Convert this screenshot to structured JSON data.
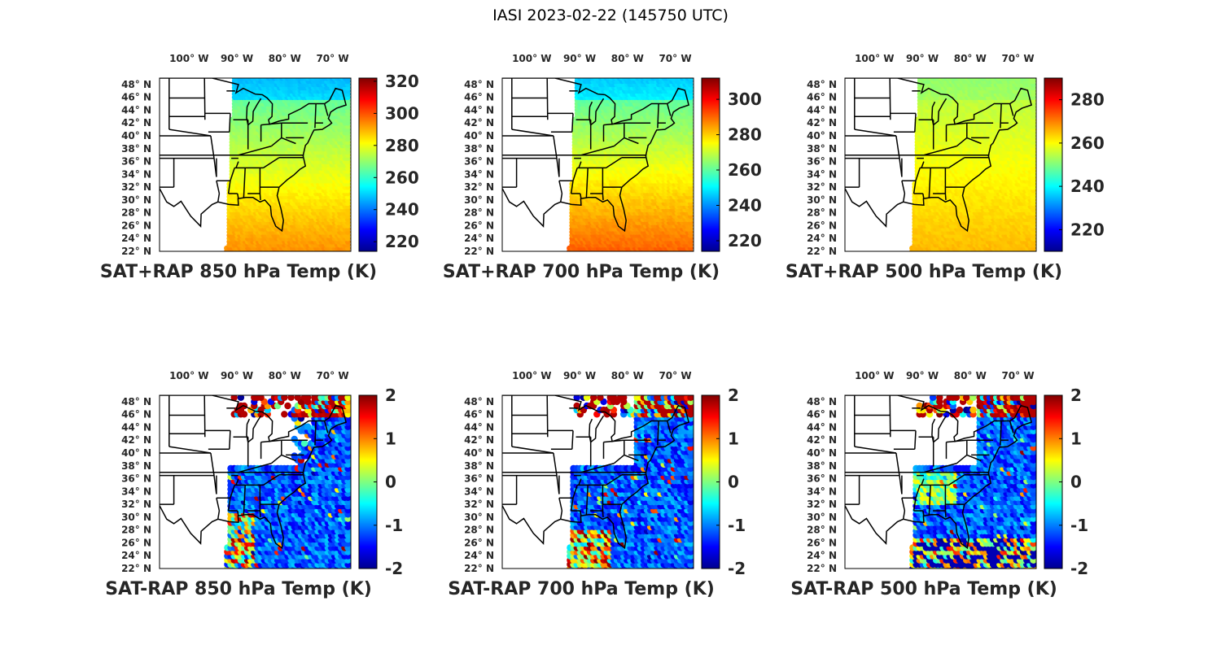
{
  "title": "IASI 2023-02-22 (145750 UTC)",
  "lon_ticks": [
    {
      "lon": 100,
      "label": "100° W"
    },
    {
      "lon": 90,
      "label": "90° W"
    },
    {
      "lon": 80,
      "label": "80° W"
    },
    {
      "lon": 70,
      "label": "70° W"
    }
  ],
  "lat_ticks": [
    {
      "lat": 48,
      "label": "48° N"
    },
    {
      "lat": 46,
      "label": "46° N"
    },
    {
      "lat": 44,
      "label": "44° N"
    },
    {
      "lat": 42,
      "label": "42° N"
    },
    {
      "lat": 40,
      "label": "40° N"
    },
    {
      "lat": 38,
      "label": "38° N"
    },
    {
      "lat": 36,
      "label": "36° N"
    },
    {
      "lat": 34,
      "label": "34° N"
    },
    {
      "lat": 32,
      "label": "32° N"
    },
    {
      "lat": 30,
      "label": "30° N"
    },
    {
      "lat": 28,
      "label": "28° N"
    },
    {
      "lat": 26,
      "label": "26° N"
    },
    {
      "lat": 24,
      "label": "24° N"
    },
    {
      "lat": 22,
      "label": "22° N"
    }
  ],
  "map_extent": {
    "lon_min": -106,
    "lon_max": -66,
    "lat_min": 22,
    "lat_max": 49
  },
  "colormap": "jet",
  "panels": [
    {
      "title": "SAT+RAP 850 hPa Temp (K)",
      "kind": "sum",
      "clim": [
        214,
        322
      ],
      "ticks": [
        220,
        240,
        260,
        280,
        300,
        320
      ]
    },
    {
      "title": "SAT+RAP 700 hPa Temp (K)",
      "kind": "sum",
      "clim": [
        214,
        312
      ],
      "ticks": [
        220,
        240,
        260,
        280,
        300
      ]
    },
    {
      "title": "SAT+RAP 500 hPa Temp (K)",
      "kind": "sum",
      "clim": [
        210,
        290
      ],
      "ticks": [
        220,
        240,
        260,
        280
      ]
    },
    {
      "title": "SAT-RAP 850 hPa Temp (K)",
      "kind": "diff",
      "clim": [
        -2,
        2
      ],
      "ticks": [
        -2,
        -1,
        0,
        1,
        2
      ]
    },
    {
      "title": "SAT-RAP 700 hPa Temp (K)",
      "kind": "diff",
      "clim": [
        -2,
        2
      ],
      "ticks": [
        -2,
        -1,
        0,
        1,
        2
      ]
    },
    {
      "title": "SAT-RAP 500 hPa Temp (K)",
      "kind": "diff",
      "clim": [
        -2,
        2
      ],
      "ticks": [
        -2,
        -1,
        0,
        1,
        2
      ]
    }
  ]
}
